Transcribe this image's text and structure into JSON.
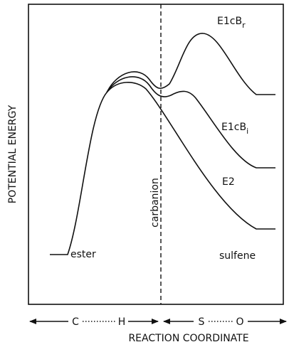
{
  "axis_labels": {
    "y": "POTENTIAL ENERGY",
    "x": "REACTION COORDINATE"
  },
  "points": {
    "start": "ester",
    "middle": "carbanion",
    "end": "sulfene"
  },
  "curves": [
    {
      "text": "E1cB",
      "subscript": "r"
    },
    {
      "text": "E1cB",
      "subscript": "i"
    },
    {
      "text": "E2"
    }
  ],
  "bonds": {
    "left": [
      "C",
      "H"
    ],
    "right": [
      "S",
      "O"
    ]
  }
}
